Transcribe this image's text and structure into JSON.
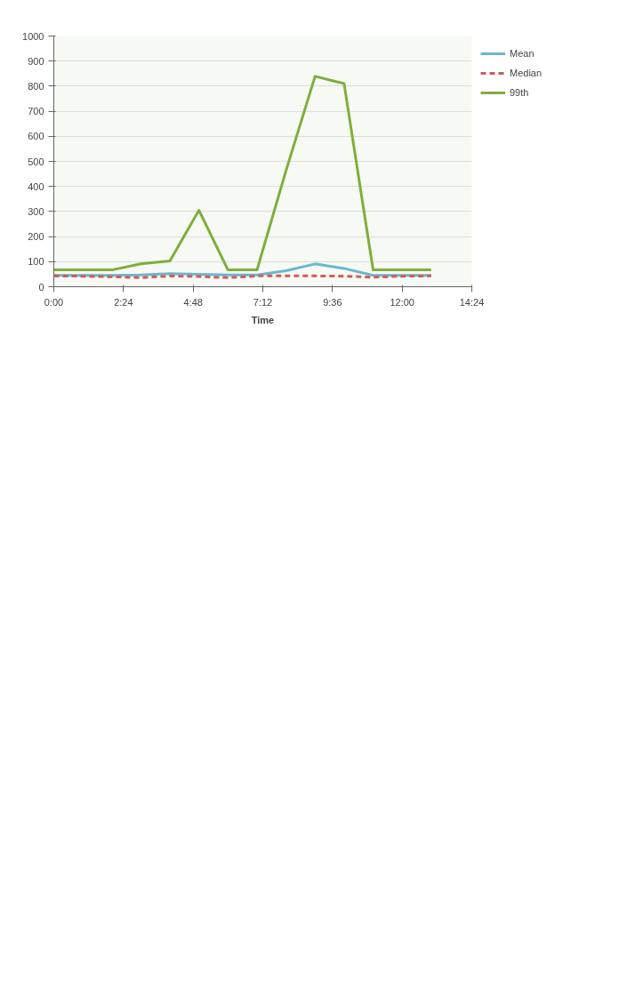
{
  "chart_data": {
    "type": "line",
    "xlabel": "Time",
    "x": [
      0,
      1,
      2,
      3,
      4,
      5,
      6,
      7,
      8,
      9,
      10,
      11,
      12,
      13
    ],
    "series": [
      {
        "name": "Mean",
        "color": "#6bb7d0",
        "values": [
          45,
          45,
          45,
          47,
          52,
          50,
          47,
          47,
          64,
          91,
          73,
          45,
          45,
          45
        ],
        "line_style": "solid"
      },
      {
        "name": "Median",
        "color": "#d15b5b",
        "values": [
          43,
          42,
          40,
          36,
          43,
          41,
          36,
          43,
          43,
          43,
          42,
          38,
          42,
          43
        ],
        "line_style": "dashed"
      },
      {
        "name": "99th",
        "color": "#7fae3c",
        "values": [
          67,
          67,
          67,
          91,
          103,
          305,
          67,
          67,
          463,
          839,
          810,
          67,
          67,
          67
        ],
        "line_style": "solid"
      }
    ],
    "xlim": [
      0,
      14.4
    ],
    "xticks": [
      {
        "value": 0,
        "label": "0:00"
      },
      {
        "value": 2.4,
        "label": "2:24"
      },
      {
        "value": 4.8,
        "label": "4:48"
      },
      {
        "value": 7.2,
        "label": "7:12"
      },
      {
        "value": 9.6,
        "label": "9:36"
      },
      {
        "value": 12,
        "label": "12:00"
      },
      {
        "value": 14.4,
        "label": "14:24"
      }
    ],
    "ylim": [
      0,
      1000
    ],
    "yticks": [
      0,
      100,
      200,
      300,
      400,
      500,
      600,
      700,
      800,
      900,
      1000
    ],
    "grid": "y",
    "legend": "top right",
    "marker": "none"
  }
}
